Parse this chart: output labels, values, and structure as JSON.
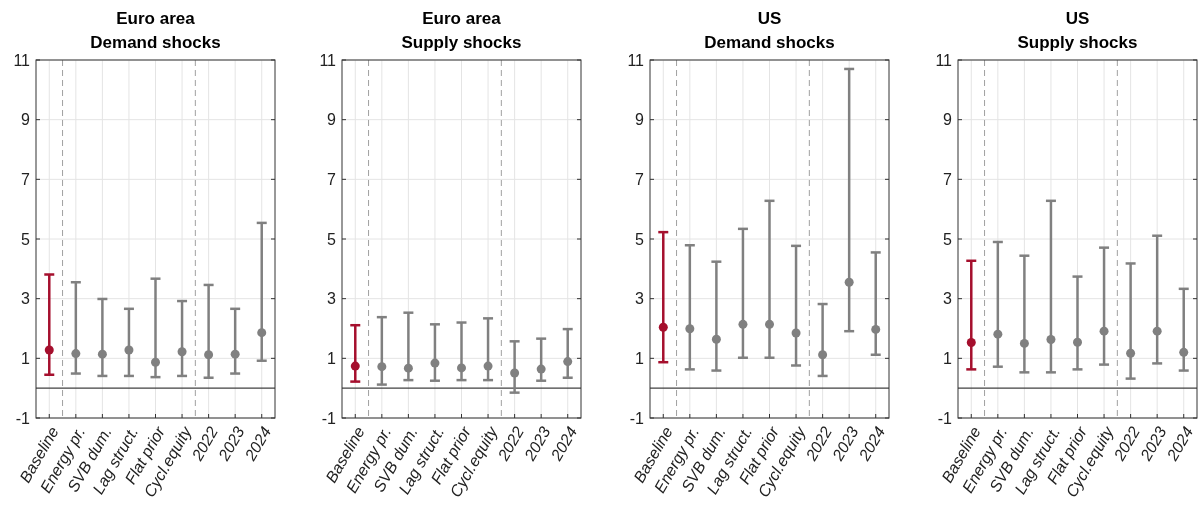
{
  "chart_data": [
    {
      "type": "scatter",
      "title": "Euro area",
      "subtitle": "Demand shocks",
      "categories": [
        "Baseline",
        "Energy pr.",
        "SVB dum.",
        "Lag struct.",
        "Flat prior",
        "Cycl.equity",
        "2022",
        "2023",
        "2024"
      ],
      "series": [
        {
          "colors": [
            "#a50f2d",
            "#808080",
            "#808080",
            "#808080",
            "#808080",
            "#808080",
            "#808080",
            "#808080",
            "#808080"
          ],
          "values": [
            1.28,
            1.16,
            1.14,
            1.28,
            0.87,
            1.22,
            1.12,
            1.14,
            1.86
          ],
          "errors": [
            [
              0.45,
              3.81
            ],
            [
              0.49,
              3.55
            ],
            [
              0.41,
              2.99
            ],
            [
              0.41,
              2.66
            ],
            [
              0.37,
              3.67
            ],
            [
              0.41,
              2.92
            ],
            [
              0.35,
              3.46
            ],
            [
              0.49,
              2.66
            ],
            [
              0.92,
              5.54
            ]
          ]
        }
      ],
      "ylim": [
        -1,
        11
      ],
      "yticks": [
        -1,
        1,
        3,
        5,
        7,
        9,
        11
      ],
      "grid": true,
      "marker": "circle",
      "ref_lines": [
        {
          "axis": "y",
          "value": 0,
          "color": "#404040",
          "line_style": "solid"
        }
      ]
    },
    {
      "type": "scatter",
      "title": "Euro area",
      "subtitle": "Supply shocks",
      "categories": [
        "Baseline",
        "Energy pr.",
        "SVB dum.",
        "Lag struct.",
        "Flat prior",
        "Cycl.equity",
        "2022",
        "2023",
        "2024"
      ],
      "series": [
        {
          "colors": [
            "#a50f2d",
            "#808080",
            "#808080",
            "#808080",
            "#808080",
            "#808080",
            "#808080",
            "#808080",
            "#808080"
          ],
          "values": [
            0.74,
            0.72,
            0.67,
            0.84,
            0.68,
            0.74,
            0.51,
            0.64,
            0.89
          ],
          "errors": [
            [
              0.22,
              2.11
            ],
            [
              0.12,
              2.38
            ],
            [
              0.27,
              2.53
            ],
            [
              0.25,
              2.14
            ],
            [
              0.27,
              2.2
            ],
            [
              0.27,
              2.34
            ],
            [
              -0.15,
              1.57
            ],
            [
              0.25,
              1.66
            ],
            [
              0.35,
              1.98
            ]
          ]
        }
      ],
      "ylim": [
        -1,
        11
      ],
      "yticks": [
        -1,
        1,
        3,
        5,
        7,
        9,
        11
      ],
      "grid": true,
      "marker": "circle",
      "ref_lines": [
        {
          "axis": "y",
          "value": 0,
          "color": "#404040",
          "line_style": "solid"
        }
      ]
    },
    {
      "type": "scatter",
      "title": "US",
      "subtitle": "Demand shocks",
      "categories": [
        "Baseline",
        "Energy pr.",
        "SVB dum.",
        "Lag struct.",
        "Flat prior",
        "Cycl.equity",
        "2022",
        "2023",
        "2024"
      ],
      "series": [
        {
          "colors": [
            "#a50f2d",
            "#808080",
            "#808080",
            "#808080",
            "#808080",
            "#808080",
            "#808080",
            "#808080",
            "#808080"
          ],
          "values": [
            2.04,
            1.99,
            1.64,
            2.14,
            2.14,
            1.85,
            1.12,
            3.55,
            1.97
          ],
          "errors": [
            [
              0.87,
              5.23
            ],
            [
              0.63,
              4.79
            ],
            [
              0.59,
              4.24
            ],
            [
              1.02,
              5.34
            ],
            [
              1.02,
              6.28
            ],
            [
              0.76,
              4.77
            ],
            [
              0.41,
              2.82
            ],
            [
              1.91,
              10.7
            ],
            [
              1.12,
              4.55
            ]
          ]
        }
      ],
      "ylim": [
        -1,
        11
      ],
      "yticks": [
        -1,
        1,
        3,
        5,
        7,
        9,
        11
      ],
      "grid": true,
      "marker": "circle",
      "ref_lines": [
        {
          "axis": "y",
          "value": 0,
          "color": "#404040",
          "line_style": "solid"
        }
      ]
    },
    {
      "type": "scatter",
      "title": "US",
      "subtitle": "Supply shocks",
      "categories": [
        "Baseline",
        "Energy pr.",
        "SVB dum.",
        "Lag struct.",
        "Flat prior",
        "Cycl.equity",
        "2022",
        "2023",
        "2024"
      ],
      "series": [
        {
          "colors": [
            "#a50f2d",
            "#808080",
            "#808080",
            "#808080",
            "#808080",
            "#808080",
            "#808080",
            "#808080",
            "#808080"
          ],
          "values": [
            1.53,
            1.81,
            1.5,
            1.63,
            1.54,
            1.91,
            1.17,
            1.91,
            1.2
          ],
          "errors": [
            [
              0.63,
              4.27
            ],
            [
              0.72,
              4.9
            ],
            [
              0.53,
              4.44
            ],
            [
              0.53,
              6.28
            ],
            [
              0.63,
              3.74
            ],
            [
              0.79,
              4.71
            ],
            [
              0.32,
              4.18
            ],
            [
              0.83,
              5.11
            ],
            [
              0.59,
              3.33
            ]
          ]
        }
      ],
      "ylim": [
        -1,
        11
      ],
      "yticks": [
        -1,
        1,
        3,
        5,
        7,
        9,
        11
      ],
      "grid": true,
      "marker": "circle",
      "ref_lines": [
        {
          "axis": "y",
          "value": 0,
          "color": "#404040",
          "line_style": "solid"
        }
      ]
    }
  ]
}
